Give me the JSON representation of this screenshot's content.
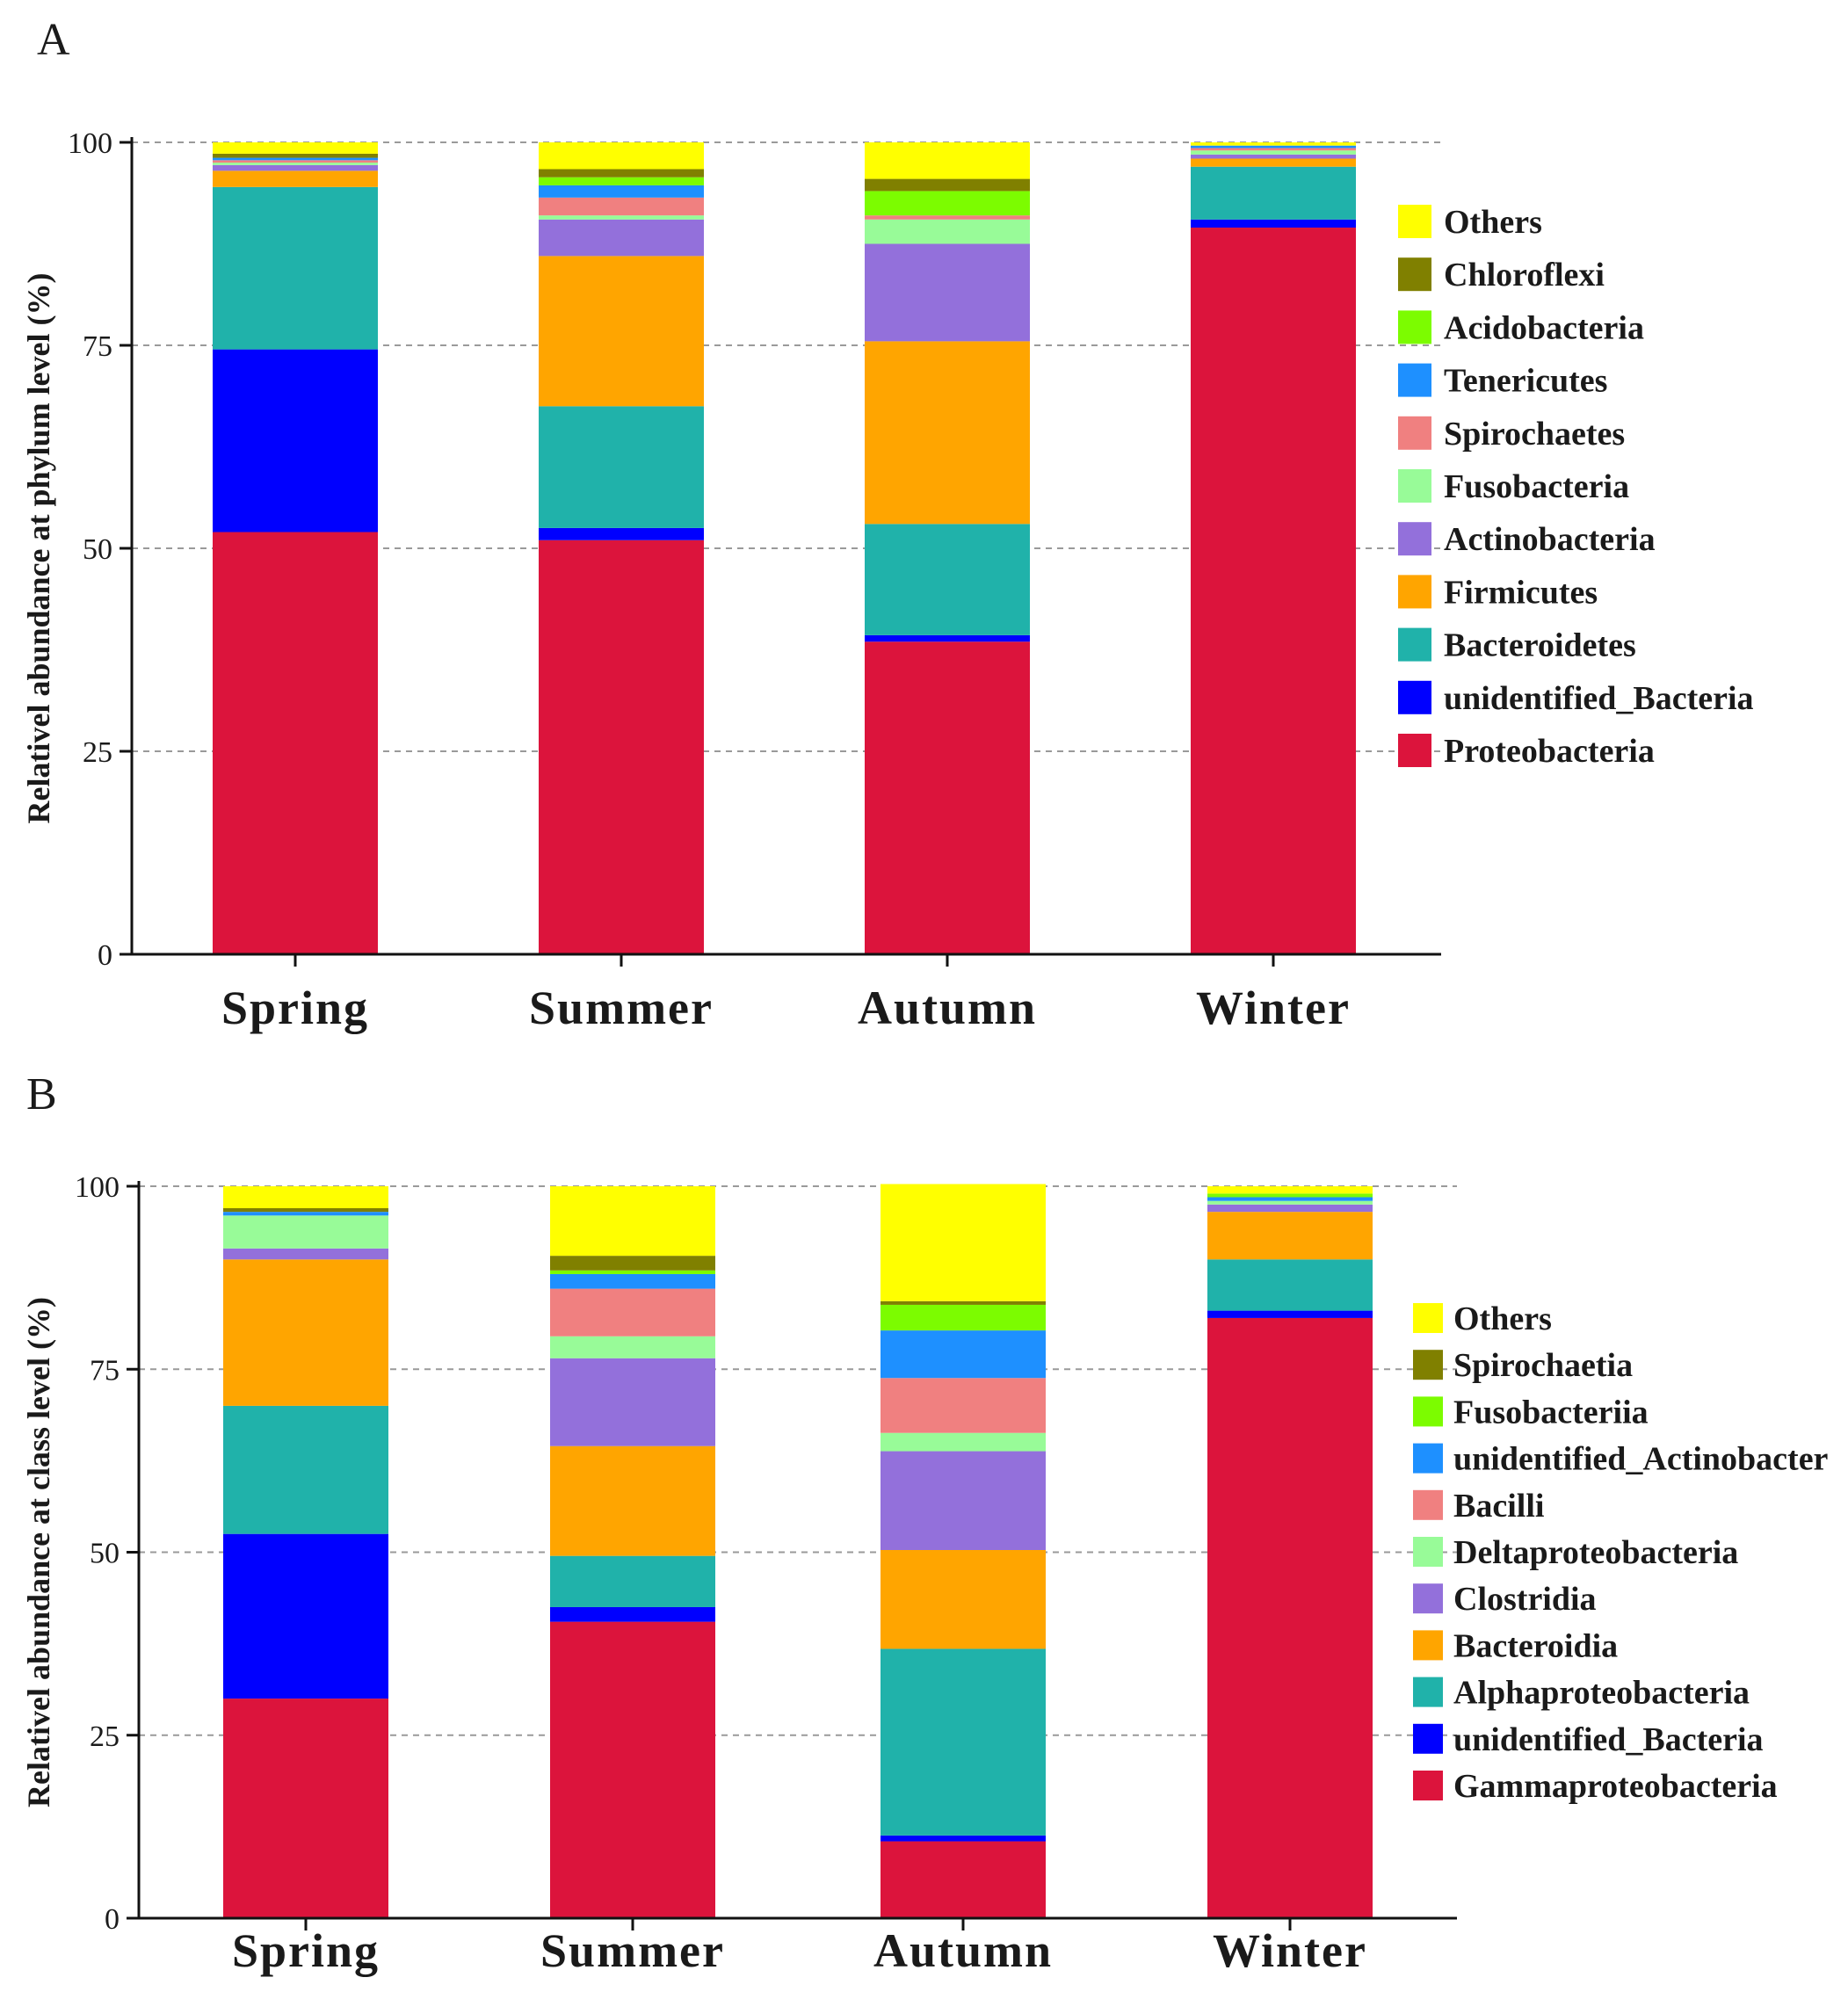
{
  "panels": [
    {
      "letter": "A",
      "chart_data": {
        "type": "bar",
        "stacked": true,
        "title": "",
        "xlabel": "",
        "ylabel": "Relativel abundance at phylum level (%)",
        "ylim": [
          0,
          100
        ],
        "yticks": [
          0,
          25,
          50,
          75,
          100
        ],
        "grid": "horizontal dashed",
        "legend_position": "right",
        "categories": [
          "Spring",
          "Summer",
          "Autumn",
          "Winter"
        ],
        "series": [
          {
            "name": "Proteobacteria",
            "color": "#DC143C",
            "values": [
              52,
              51,
              38.5,
              89.5
            ]
          },
          {
            "name": "unidentified_Bacteria",
            "color": "#0000FF",
            "values": [
              22.5,
              1.5,
              0.8,
              1
            ]
          },
          {
            "name": "Bacteroidetes",
            "color": "#20B2AA",
            "values": [
              20,
              15,
              13.7,
              6.5
            ]
          },
          {
            "name": "Firmicutes",
            "color": "#FFA500",
            "values": [
              2,
              18.5,
              22.5,
              1
            ]
          },
          {
            "name": "Actinobacteria",
            "color": "#9370DB",
            "values": [
              0.7,
              4.5,
              12,
              0.5
            ]
          },
          {
            "name": "Fusobacteria",
            "color": "#98FB98",
            "values": [
              0.3,
              0.5,
              3,
              0.5
            ]
          },
          {
            "name": "Spirochaetes",
            "color": "#F08080",
            "values": [
              0.3,
              2.2,
              0.5,
              0.3
            ]
          },
          {
            "name": "Tenericutes",
            "color": "#1E90FF",
            "values": [
              0.3,
              1.5,
              0,
              0.3
            ]
          },
          {
            "name": "Acidobacteria",
            "color": "#7CFC00",
            "values": [
              0,
              1,
              3,
              0
            ]
          },
          {
            "name": "Chloroflexi",
            "color": "#808000",
            "values": [
              0.5,
              1,
              1.5,
              0
            ]
          },
          {
            "name": "Others",
            "color": "#FFFF00",
            "values": [
              1.4,
              3.3,
              4.5,
              0.4
            ]
          }
        ],
        "legend": [
          "Others",
          "Chloroflexi",
          "Acidobacteria",
          "Tenericutes",
          "Spirochaetes",
          "Fusobacteria",
          "Actinobacteria",
          "Firmicutes",
          "Bacteroidetes",
          "unidentified_Bacteria",
          "Proteobacteria"
        ]
      }
    },
    {
      "letter": "B",
      "chart_data": {
        "type": "bar",
        "stacked": true,
        "title": "",
        "xlabel": "",
        "ylabel": "Relativel abundance at class level (%)",
        "ylim": [
          0,
          100
        ],
        "yticks": [
          0,
          25,
          50,
          75,
          100
        ],
        "grid": "horizontal dashed",
        "legend_position": "right",
        "categories": [
          "Spring",
          "Summer",
          "Autumn",
          "Winter"
        ],
        "series": [
          {
            "name": "Gammaproteobacteria",
            "color": "#DC143C",
            "values": [
              30,
              40.5,
              10.5,
              82
            ]
          },
          {
            "name": "unidentified_Bacteria",
            "color": "#0000FF",
            "values": [
              22.5,
              2,
              0.8,
              1
            ]
          },
          {
            "name": "Alphaproteobacteria",
            "color": "#20B2AA",
            "values": [
              17.5,
              7,
              25.5,
              7
            ]
          },
          {
            "name": "Bacteroidia",
            "color": "#FFA500",
            "values": [
              20,
              15,
              13.5,
              6.5
            ]
          },
          {
            "name": "Clostridia",
            "color": "#9370DB",
            "values": [
              1.5,
              12,
              13.5,
              1
            ]
          },
          {
            "name": "Deltaproteobacteria",
            "color": "#98FB98",
            "values": [
              4.5,
              3,
              2.5,
              0.5
            ]
          },
          {
            "name": "Bacilli",
            "color": "#F08080",
            "values": [
              0,
              6.5,
              7.5,
              0
            ]
          },
          {
            "name": "unidentified_Actinobacter",
            "color": "#1E90FF",
            "values": [
              0.5,
              2,
              6.5,
              0.5
            ]
          },
          {
            "name": "Fusobacteriia",
            "color": "#7CFC00",
            "values": [
              0,
              0.5,
              3.5,
              0.5
            ]
          },
          {
            "name": "Spirochaetia",
            "color": "#808000",
            "values": [
              0.5,
              2,
              0.5,
              0
            ]
          },
          {
            "name": "Others",
            "color": "#FFFF00",
            "values": [
              3,
              9.5,
              16,
              1
            ]
          }
        ],
        "legend": [
          "Others",
          "Spirochaetia",
          "Fusobacteriia",
          "unidentified_Actinobacter",
          "Bacilli",
          "Deltaproteobacteria",
          "Clostridia",
          "Bacteroidia",
          "Alphaproteobacteria",
          "unidentified_Bacteria",
          "Gammaproteobacteria"
        ]
      }
    }
  ]
}
